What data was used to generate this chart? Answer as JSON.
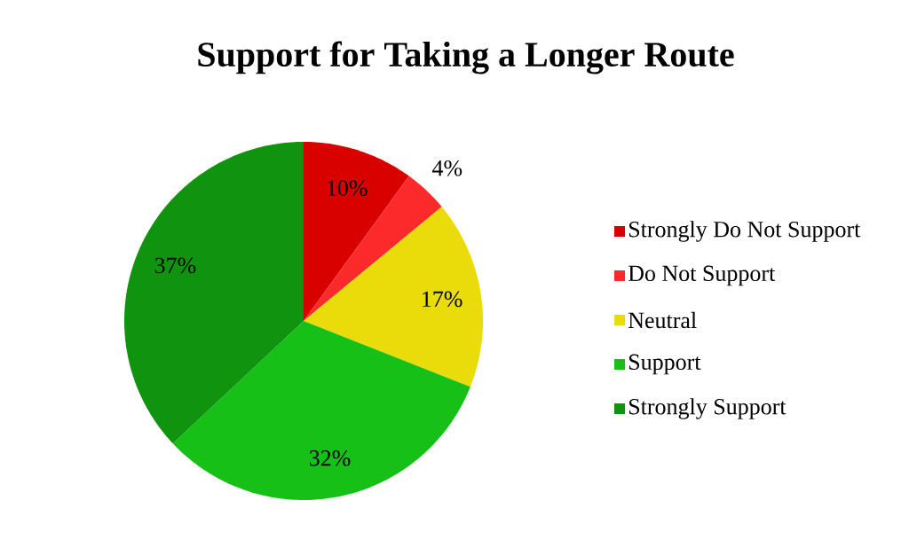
{
  "chart_data": {
    "type": "pie",
    "title": "Support for Taking a Longer Route",
    "categories": [
      "Strongly Do Not Support",
      "Do Not Support",
      "Neutral",
      "Support",
      "Strongly Support"
    ],
    "values": [
      10,
      4,
      17,
      32,
      37
    ],
    "value_labels": [
      "10%",
      "4%",
      "17%",
      "32%",
      "37%"
    ],
    "colors": [
      "#d90000",
      "#fc2a2a",
      "#eadb0a",
      "#16c016",
      "#109410"
    ],
    "legend": "right"
  }
}
